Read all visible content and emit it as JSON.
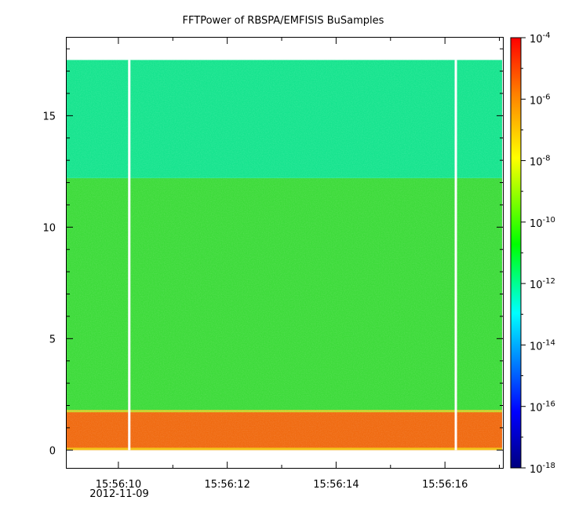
{
  "chart_data": {
    "type": "heatmap",
    "title": "FFTPower of RBSPA/EMFISIS  BuSamples",
    "xlabel": "",
    "ylabel": "",
    "date_label": "2012-11-09",
    "x_tick_labels": [
      "15:56:10",
      "15:56:12",
      "15:56:14",
      "15:56:16"
    ],
    "y_ticks": [
      0,
      5,
      10,
      15
    ],
    "ylim": [
      -0.8,
      18.5
    ],
    "data_extent_y": [
      0,
      17.5
    ],
    "colorbar": {
      "scale": "log",
      "range": [
        1e-18,
        0.0001
      ],
      "tick_exponents": [
        -4,
        -6,
        -8,
        -10,
        -12,
        -14,
        -16,
        -18
      ],
      "colors": [
        "#00007f",
        "#0000ff",
        "#00ffff",
        "#00ff00",
        "#ffff00",
        "#ff7f00",
        "#ff0000"
      ]
    },
    "bands": [
      {
        "y_range": [
          0.0,
          1.8
        ],
        "log_power": -7.0,
        "color": "#f06a10"
      },
      {
        "y_range": [
          1.8,
          12.2
        ],
        "log_power": -10.5,
        "color": "#3ddb3a"
      },
      {
        "y_range": [
          12.2,
          17.5
        ],
        "log_power": -12.0,
        "color": "#16e48e"
      }
    ],
    "data_gaps": [
      "15:56:10.2",
      "15:56:16.2"
    ]
  }
}
